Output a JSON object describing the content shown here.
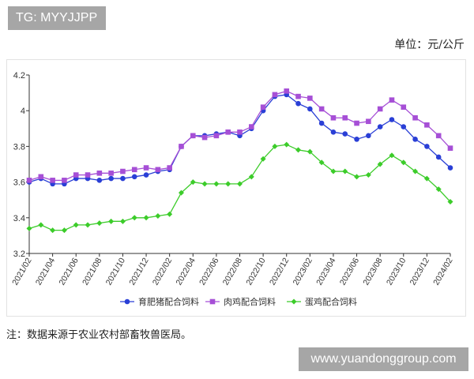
{
  "tag": "TG: MYYJJPP",
  "unit": "单位：元/公斤",
  "note": "注：数据来源于农业农村部畜牧兽医局。",
  "watermark": "www.yuandonggroup.com",
  "chart_data": {
    "type": "line",
    "title": "",
    "xlabel": "",
    "ylabel": "",
    "ylim": [
      3.2,
      4.2
    ],
    "yticks": [
      "3.2",
      "3.4",
      "3.6",
      "3.8",
      "4",
      "4.2"
    ],
    "x": [
      "2021/02",
      "2021/03",
      "2021/04",
      "2021/05",
      "2021/06",
      "2021/07",
      "2021/08",
      "2021/09",
      "2021/10",
      "2021/11",
      "2021/12",
      "2022/01",
      "2022/02",
      "2022/03",
      "2022/04",
      "2022/05",
      "2022/06",
      "2022/07",
      "2022/08",
      "2022/09",
      "2022/10",
      "2022/11",
      "2022/12",
      "2023/01",
      "2023/02",
      "2023/03",
      "2023/04",
      "2023/05",
      "2023/06",
      "2023/07",
      "2023/08",
      "2023/09",
      "2023/10",
      "2023/11",
      "2023/12",
      "2024/01",
      "2024/02"
    ],
    "xtick_labels": [
      "2021/02",
      "2021/04",
      "2021/06",
      "2021/08",
      "2021/10",
      "2021/12",
      "2022/02",
      "2022/04",
      "2022/06",
      "2022/08",
      "2022/10",
      "2022/12",
      "2023/02",
      "2023/04",
      "2023/06",
      "2023/08",
      "2023/10",
      "2023/12",
      "2024/02"
    ],
    "legend": "bottom",
    "series": [
      {
        "name": "育肥猪配合饲料",
        "color": "#2a3fd6",
        "marker": "circle",
        "values": [
          3.6,
          3.62,
          3.59,
          3.59,
          3.62,
          3.62,
          3.61,
          3.62,
          3.62,
          3.63,
          3.64,
          3.66,
          3.67,
          3.8,
          3.86,
          3.86,
          3.87,
          3.88,
          3.86,
          3.9,
          4.0,
          4.08,
          4.09,
          4.04,
          4.01,
          3.93,
          3.88,
          3.87,
          3.84,
          3.86,
          3.91,
          3.95,
          3.91,
          3.84,
          3.8,
          3.74,
          3.68
        ]
      },
      {
        "name": "肉鸡配合饲料",
        "color": "#a64fd6",
        "marker": "square",
        "values": [
          3.61,
          3.63,
          3.61,
          3.61,
          3.64,
          3.64,
          3.65,
          3.65,
          3.66,
          3.67,
          3.68,
          3.67,
          3.68,
          3.8,
          3.86,
          3.85,
          3.86,
          3.88,
          3.88,
          3.91,
          4.02,
          4.09,
          4.11,
          4.08,
          4.07,
          4.01,
          3.96,
          3.96,
          3.93,
          3.94,
          4.01,
          4.06,
          4.02,
          3.96,
          3.92,
          3.86,
          3.79
        ]
      },
      {
        "name": "蛋鸡配合饲料",
        "color": "#3ccc2a",
        "marker": "diamond",
        "values": [
          3.34,
          3.36,
          3.33,
          3.33,
          3.36,
          3.36,
          3.37,
          3.38,
          3.38,
          3.4,
          3.4,
          3.41,
          3.42,
          3.54,
          3.6,
          3.59,
          3.59,
          3.59,
          3.59,
          3.63,
          3.73,
          3.8,
          3.81,
          3.78,
          3.77,
          3.71,
          3.66,
          3.66,
          3.63,
          3.64,
          3.7,
          3.75,
          3.71,
          3.66,
          3.62,
          3.56,
          3.49
        ]
      }
    ]
  }
}
